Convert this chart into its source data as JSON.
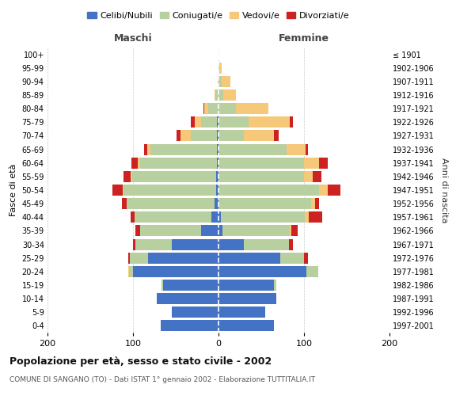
{
  "age_groups": [
    "100+",
    "95-99",
    "90-94",
    "85-89",
    "80-84",
    "75-79",
    "70-74",
    "65-69",
    "60-64",
    "55-59",
    "50-54",
    "45-49",
    "40-44",
    "35-39",
    "30-34",
    "25-29",
    "20-24",
    "15-19",
    "10-14",
    "5-9",
    "0-4"
  ],
  "birth_years": [
    "≤ 1901",
    "1902-1906",
    "1907-1911",
    "1912-1916",
    "1917-1921",
    "1922-1926",
    "1927-1931",
    "1932-1936",
    "1937-1941",
    "1942-1946",
    "1947-1951",
    "1952-1956",
    "1957-1961",
    "1962-1966",
    "1967-1971",
    "1972-1976",
    "1977-1981",
    "1982-1986",
    "1987-1991",
    "1992-1996",
    "1997-2001"
  ],
  "male_celibi": [
    0,
    0,
    0,
    0,
    0,
    2,
    2,
    2,
    2,
    3,
    3,
    5,
    8,
    20,
    55,
    82,
    100,
    65,
    72,
    55,
    68
  ],
  "male_coniugati": [
    0,
    0,
    1,
    4,
    12,
    18,
    30,
    78,
    90,
    98,
    108,
    102,
    90,
    72,
    42,
    22,
    5,
    2,
    0,
    0,
    0
  ],
  "male_vedovi": [
    0,
    0,
    0,
    1,
    5,
    8,
    12,
    3,
    2,
    2,
    1,
    0,
    0,
    0,
    0,
    0,
    1,
    0,
    0,
    0,
    0
  ],
  "male_divorziati": [
    0,
    0,
    0,
    0,
    1,
    4,
    5,
    4,
    8,
    8,
    12,
    6,
    5,
    5,
    3,
    2,
    0,
    0,
    0,
    0,
    0
  ],
  "female_nubili": [
    0,
    0,
    0,
    0,
    0,
    0,
    0,
    0,
    0,
    0,
    0,
    0,
    3,
    5,
    30,
    72,
    103,
    65,
    68,
    55,
    65
  ],
  "female_coniugate": [
    0,
    1,
    4,
    6,
    20,
    35,
    30,
    80,
    100,
    100,
    118,
    108,
    98,
    78,
    52,
    28,
    14,
    3,
    0,
    0,
    0
  ],
  "female_vedove": [
    0,
    3,
    10,
    14,
    38,
    48,
    35,
    22,
    18,
    10,
    10,
    5,
    5,
    2,
    0,
    0,
    0,
    0,
    0,
    0,
    0
  ],
  "female_divorziate": [
    0,
    0,
    0,
    0,
    0,
    4,
    5,
    3,
    10,
    10,
    15,
    5,
    15,
    8,
    5,
    5,
    0,
    0,
    0,
    0,
    0
  ],
  "colors": {
    "celibi": "#4472c4",
    "coniugati": "#b8cfa0",
    "vedovi": "#f5c87a",
    "divorziati": "#cc2222"
  },
  "title": "Popolazione per età, sesso e stato civile - 2002",
  "subtitle": "COMUNE DI SANGANO (TO) - Dati ISTAT 1° gennaio 2002 - Elaborazione TUTTITALIA.IT",
  "xlabel_left": "Maschi",
  "xlabel_right": "Femmine",
  "ylabel_left": "Fasce di età",
  "ylabel_right": "Anni di nascita",
  "xlim": 200,
  "bg_color": "#ffffff",
  "grid_color": "#cccccc",
  "legend_labels": [
    "Celibi/Nubili",
    "Coniugati/e",
    "Vedovi/e",
    "Divorziati/e"
  ]
}
